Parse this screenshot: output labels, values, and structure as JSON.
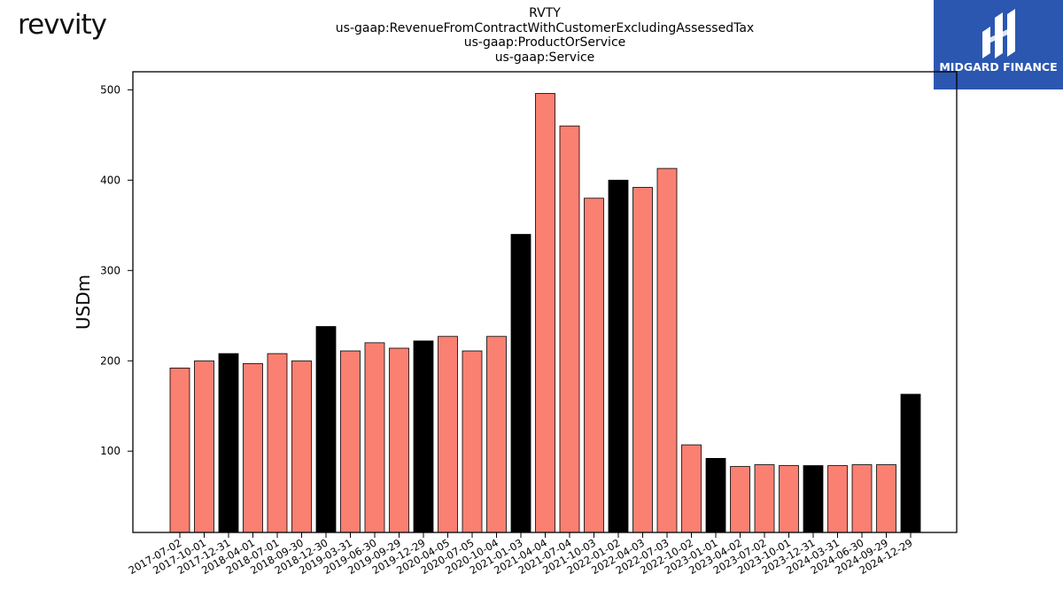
{
  "brand": {
    "logo_text": "revvity"
  },
  "badge": {
    "name": "MIDGARD FINANCE",
    "bg_color": "#2b57b0"
  },
  "chart_data": {
    "type": "bar",
    "title_lines": [
      "RVTY",
      "us-gaap:RevenueFromContractWithCustomerExcludingAssessedTax",
      "us-gaap:ProductOrService",
      "us-gaap:Service"
    ],
    "xlabel": "",
    "ylabel": "USDm",
    "ylim": [
      10,
      520
    ],
    "yticks": [
      100,
      200,
      300,
      400,
      500
    ],
    "grid": false,
    "legend": "none",
    "colors": {
      "quarter": "#fa8072",
      "fiscal_year_end": "#000000",
      "edge": "#000000"
    },
    "categories": [
      "2017-07-02",
      "2017-10-01",
      "2017-12-31",
      "2018-04-01",
      "2018-07-01",
      "2018-09-30",
      "2018-12-30",
      "2019-03-31",
      "2019-06-30",
      "2019-09-29",
      "2019-12-29",
      "2020-04-05",
      "2020-07-05",
      "2020-10-04",
      "2021-01-03",
      "2021-04-04",
      "2021-07-04",
      "2021-10-03",
      "2022-01-02",
      "2022-04-03",
      "2022-07-03",
      "2022-10-02",
      "2023-01-01",
      "2023-04-02",
      "2023-07-02",
      "2023-10-01",
      "2023-12-31",
      "2024-03-31",
      "2024-06-30",
      "2024-09-29",
      "2024-12-29"
    ],
    "values": [
      192,
      200,
      208,
      197,
      208,
      200,
      238,
      211,
      220,
      214,
      222,
      227,
      211,
      227,
      340,
      496,
      460,
      380,
      400,
      392,
      413,
      107,
      92,
      83,
      85,
      84,
      84,
      84,
      85,
      85,
      163
    ],
    "year_end": [
      false,
      false,
      true,
      false,
      false,
      false,
      true,
      false,
      false,
      false,
      true,
      false,
      false,
      false,
      true,
      false,
      false,
      false,
      true,
      false,
      false,
      false,
      true,
      false,
      false,
      false,
      true,
      false,
      false,
      false,
      true
    ]
  }
}
